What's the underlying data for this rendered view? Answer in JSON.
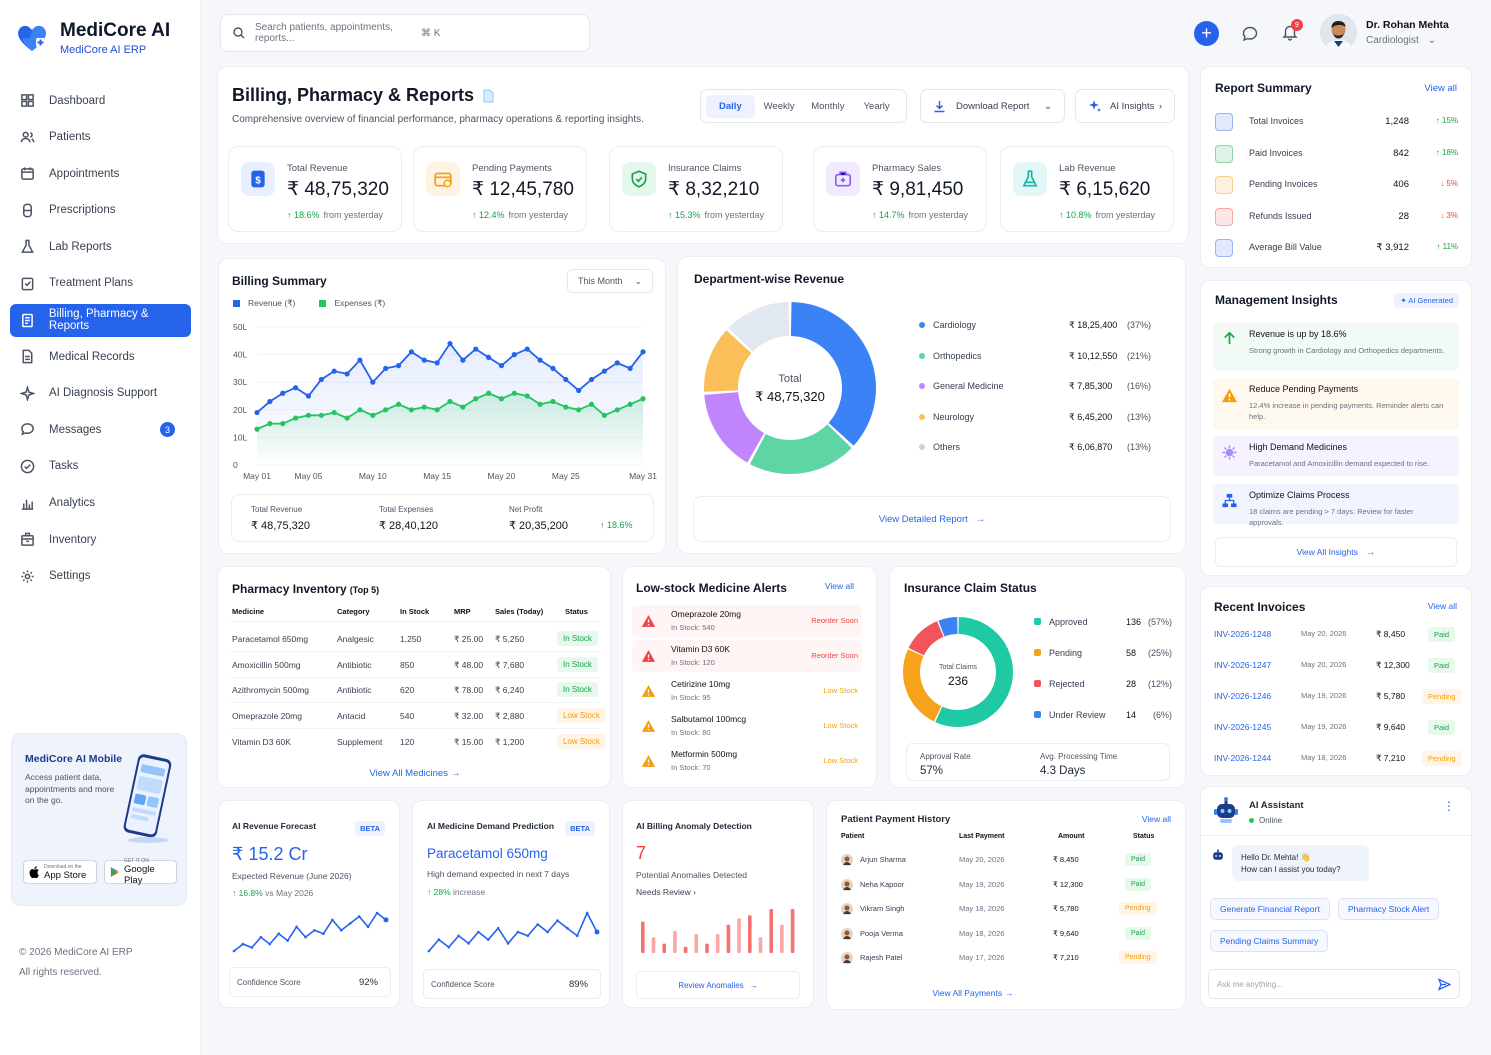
{
  "app": {
    "name": "MediCore AI",
    "sub": "MediCore AI ERP"
  },
  "nav": [
    {
      "label": "Dashboard",
      "icon": "grid-icon"
    },
    {
      "label": "Patients",
      "icon": "users-icon"
    },
    {
      "label": "Appointments",
      "icon": "calendar-icon"
    },
    {
      "label": "Prescriptions",
      "icon": "pill-icon"
    },
    {
      "label": "Lab Reports",
      "icon": "flask-icon"
    },
    {
      "label": "Treatment Plans",
      "icon": "clipboard-icon"
    },
    {
      "label": "Billing, Pharmacy & Reports",
      "icon": "receipt-icon",
      "active": true
    },
    {
      "label": "Medical Records",
      "icon": "file-icon"
    },
    {
      "label": "AI Diagnosis Support",
      "icon": "sparkle-icon"
    },
    {
      "label": "Messages",
      "icon": "chat-icon",
      "badge": "3"
    },
    {
      "label": "Tasks",
      "icon": "check-circle-icon"
    },
    {
      "label": "Analytics",
      "icon": "bar-chart-icon"
    },
    {
      "label": "Inventory",
      "icon": "box-icon"
    },
    {
      "label": "Settings",
      "icon": "gear-icon"
    }
  ],
  "mobile": {
    "title": "MediCore AI Mobile",
    "desc": "Access patient data, appointments and more on the go.",
    "appstore_small": "Download on the",
    "appstore": "App Store",
    "play_small": "GET IT ON",
    "play": "Google Play"
  },
  "footer": {
    "copy": "© 2026 MediCore AI ERP",
    "rights": "All rights reserved."
  },
  "search": {
    "placeholder": "Search patients, appointments, reports...",
    "shortcut": "⌘ K"
  },
  "notif_count": "9",
  "user": {
    "name": "Dr. Rohan Mehta",
    "role": "Cardiologist"
  },
  "page": {
    "title": "Billing, Pharmacy & Reports",
    "subtitle": "Comprehensive overview of financial performance, pharmacy operations & reporting insights."
  },
  "period_tabs": [
    "Daily",
    "Weekly",
    "Monthly",
    "Yearly"
  ],
  "download": "Download Report",
  "ai_insights": "AI Insights",
  "kpis": [
    {
      "label": "Total Revenue",
      "value": "₹ 48,75,320",
      "change": "↑ 18.6%",
      "note": "from yesterday",
      "bg": "#e8efff",
      "fg": "#2563eb"
    },
    {
      "label": "Pending Payments",
      "value": "₹ 12,45,780",
      "change": "↑ 12.4%",
      "note": "from yesterday",
      "bg": "#fff3e3",
      "fg": "#f59e0b"
    },
    {
      "label": "Insurance Claims",
      "value": "₹ 8,32,210",
      "change": "↑ 15.3%",
      "note": "from yesterday",
      "bg": "#e6f7ee",
      "fg": "#16a34a"
    },
    {
      "label": "Pharmacy Sales",
      "value": "₹ 9,81,450",
      "change": "↑ 14.7%",
      "note": "from yesterday",
      "bg": "#f2eaff",
      "fg": "#8b5cf6"
    },
    {
      "label": "Lab Revenue",
      "value": "₹ 6,15,620",
      "change": "↑ 10.8%",
      "note": "from yesterday",
      "bg": "#e3f7f6",
      "fg": "#14b8a6"
    }
  ],
  "report_summary": {
    "title": "Report Summary",
    "view_all": "View all",
    "rows": [
      {
        "label": "Total Invoices",
        "value": "1,248",
        "change": "↑ 15%",
        "up": true,
        "color": "#2563eb"
      },
      {
        "label": "Paid Invoices",
        "value": "842",
        "change": "↑ 18%",
        "up": true,
        "color": "#16a34a"
      },
      {
        "label": "Pending Invoices",
        "value": "406",
        "change": "↓ 5%",
        "up": false,
        "color": "#f59e0b"
      },
      {
        "label": "Refunds Issued",
        "value": "28",
        "change": "↓ 3%",
        "up": false,
        "color": "#ef4444"
      },
      {
        "label": "Average Bill Value",
        "value": "₹ 3,912",
        "change": "↑ 11%",
        "up": true,
        "color": "#2563eb"
      }
    ]
  },
  "billing": {
    "title": "Billing Summary",
    "period": "This Month",
    "legend_revenue": "Revenue (₹)",
    "legend_expenses": "Expenses (₹)",
    "totals": [
      {
        "label": "Total Revenue",
        "value": "₹ 48,75,320"
      },
      {
        "label": "Total Expenses",
        "value": "₹ 28,40,120"
      },
      {
        "label": "Net Profit",
        "value": "₹ 20,35,200"
      }
    ],
    "profit_change": "↑ 18.6%"
  },
  "chart_data": [
    {
      "type": "area",
      "title": "Billing Summary",
      "y_ticks": [
        "0",
        "10L",
        "20L",
        "30L",
        "40L",
        "50L"
      ],
      "ylim": [
        0,
        50
      ],
      "x_labels": [
        "May 01",
        "May 05",
        "May 10",
        "May 15",
        "May 20",
        "May 25",
        "May 31"
      ],
      "series": [
        {
          "name": "Revenue (₹)",
          "color": "#2563eb",
          "values": [
            19,
            23,
            26,
            28,
            25,
            31,
            34,
            33,
            38,
            30,
            35,
            36,
            41,
            38,
            37,
            44,
            38,
            42,
            39,
            36,
            40,
            42,
            38,
            35,
            31,
            27,
            31,
            34,
            37,
            35,
            41
          ]
        },
        {
          "name": "Expenses (₹)",
          "color": "#22c55e",
          "values": [
            13,
            15,
            15,
            17,
            18,
            18,
            19,
            17,
            20,
            18,
            20,
            22,
            20,
            21,
            20,
            23,
            21,
            24,
            26,
            24,
            26,
            25,
            22,
            23,
            21,
            20,
            22,
            18,
            20,
            22,
            24
          ]
        }
      ]
    },
    {
      "type": "pie",
      "title": "Department-wise Revenue",
      "center_label": "Total",
      "center_value": "₹ 48,75,320",
      "slices": [
        {
          "name": "Cardiology",
          "value": "₹ 18,25,400",
          "pct": "(37%)",
          "share": 37,
          "color": "#3b82f6"
        },
        {
          "name": "Orthopedics",
          "value": "₹ 10,12,550",
          "pct": "(21%)",
          "share": 21,
          "color": "#5fd4a4"
        },
        {
          "name": "General Medicine",
          "value": "₹ 7,85,300",
          "pct": "(16%)",
          "share": 16,
          "color": "#c084fc"
        },
        {
          "name": "Neurology",
          "value": "₹ 6,45,200",
          "pct": "(13%)",
          "share": 13,
          "color": "#fbbf5a"
        },
        {
          "name": "Others",
          "value": "₹ 6,06,870",
          "pct": "(13%)",
          "share": 13,
          "color": "#e2e8f0"
        }
      ]
    },
    {
      "type": "pie",
      "title": "Insurance Claim Status",
      "center_label": "Total Claims",
      "center_value": "236",
      "slices": [
        {
          "name": "Approved",
          "value": "136",
          "pct": "(57%)",
          "share": 57,
          "color": "#1ec9a3"
        },
        {
          "name": "Pending",
          "value": "58",
          "pct": "(25%)",
          "share": 25,
          "color": "#f7a21b"
        },
        {
          "name": "Rejected",
          "value": "28",
          "pct": "(12%)",
          "share": 12,
          "color": "#f2545b"
        },
        {
          "name": "Under Review",
          "value": "14",
          "pct": "(6%)",
          "share": 6,
          "color": "#3b82f6"
        }
      ]
    },
    {
      "type": "line",
      "title": "AI Revenue Forecast",
      "values": [
        3,
        5,
        4,
        7,
        5,
        8,
        6,
        10,
        7,
        9,
        8,
        12,
        9,
        11,
        13,
        10,
        14,
        12
      ]
    },
    {
      "type": "line",
      "title": "AI Medicine Demand Prediction",
      "values": [
        4,
        7,
        5,
        8,
        6,
        9,
        7,
        10,
        6,
        9,
        8,
        11,
        9,
        12,
        10,
        8,
        14,
        9
      ]
    },
    {
      "type": "bar",
      "title": "AI Billing Anomaly Detection",
      "values": [
        10,
        5,
        3,
        7,
        2,
        6,
        3,
        6,
        9,
        11,
        12,
        5,
        14,
        9,
        14
      ],
      "colors": [
        "#f87171",
        "#fca5a5"
      ]
    }
  ],
  "dept": {
    "title": "Department-wise Revenue",
    "view_report": "View Detailed Report"
  },
  "mgmt": {
    "title": "Management Insights",
    "tag": "AI Generated",
    "view_all": "View All Insights",
    "items": [
      {
        "title": "Revenue is up by 18.6%",
        "desc": "Strong growth in Cardiology and Orthopedics departments.",
        "icon": "arrow-up-icon",
        "bg": "#f1faf4",
        "color": "#16a34a"
      },
      {
        "title": "Reduce Pending Payments",
        "desc": "12.4% increase in pending payments. Reminder alerts can help.",
        "icon": "warning-icon",
        "bg": "#fff8ee",
        "color": "#f59e0b"
      },
      {
        "title": "High Demand Medicines",
        "desc": "Paracetamol and Amoxicillin demand expected to rise.",
        "icon": "virus-icon",
        "bg": "#f7f2ff",
        "color": "#8b5cf6"
      },
      {
        "title": "Optimize Claims Process",
        "desc": "18 claims are pending > 7 days. Review for faster approvals.",
        "icon": "flow-icon",
        "bg": "#f1f5ff",
        "color": "#2563eb"
      }
    ]
  },
  "inventory": {
    "title": "Pharmacy Inventory",
    "title_suffix": "(Top 5)",
    "headers": [
      "Medicine",
      "Category",
      "In Stock",
      "MRP",
      "Sales (Today)",
      "Status"
    ],
    "view_all": "View All Medicines",
    "rows": [
      [
        "Paracetamol 650mg",
        "Analgesic",
        "1,250",
        "₹ 25.00",
        "₹ 5,250",
        "In Stock"
      ],
      [
        "Amoxicillin 500mg",
        "Antibiotic",
        "850",
        "₹ 48.00",
        "₹ 7,680",
        "In Stock"
      ],
      [
        "Azithromycin 500mg",
        "Antibiotic",
        "620",
        "₹ 78.00",
        "₹ 6,240",
        "In Stock"
      ],
      [
        "Omeprazole 20mg",
        "Antacid",
        "540",
        "₹ 32.00",
        "₹ 2,880",
        "Low Stock"
      ],
      [
        "Vitamin D3 60K",
        "Supplement",
        "120",
        "₹ 15.00",
        "₹ 1,200",
        "Low Stock"
      ]
    ]
  },
  "lowstock": {
    "title": "Low-stock Medicine Alerts",
    "view_all": "View all",
    "items": [
      {
        "name": "Omeprazole 20mg",
        "stock": "In Stock: 540",
        "status": "Reorder Soon",
        "color": "#ef4444"
      },
      {
        "name": "Vitamin D3 60K",
        "stock": "In Stock: 120",
        "status": "Reorder Soon",
        "color": "#ef4444"
      },
      {
        "name": "Cetirizine 10mg",
        "stock": "In Stock: 95",
        "status": "Low Stock",
        "color": "#f59e0b"
      },
      {
        "name": "Salbutamol 100mcg",
        "stock": "In Stock: 80",
        "status": "Low Stock",
        "color": "#f59e0b"
      },
      {
        "name": "Metformin 500mg",
        "stock": "In Stock: 70",
        "status": "Low Stock",
        "color": "#f59e0b"
      }
    ]
  },
  "claims": {
    "title": "Insurance Claim Status",
    "approval_label": "Approval Rate",
    "approval": "57%",
    "proc_label": "Avg. Processing Time",
    "proc": "4.3 Days"
  },
  "invoices": {
    "title": "Recent Invoices",
    "view_all": "View all",
    "rows": [
      {
        "id": "INV-2026-1248",
        "date": "May 20, 2026",
        "amount": "₹ 8,450",
        "status": "Paid"
      },
      {
        "id": "INV-2026-1247",
        "date": "May 20, 2026",
        "amount": "₹ 12,300",
        "status": "Paid"
      },
      {
        "id": "INV-2026-1246",
        "date": "May 19, 2026",
        "amount": "₹ 5,780",
        "status": "Pending"
      },
      {
        "id": "INV-2026-1245",
        "date": "May 19, 2026",
        "amount": "₹ 9,640",
        "status": "Paid"
      },
      {
        "id": "INV-2026-1244",
        "date": "May 18, 2026",
        "amount": "₹ 7,210",
        "status": "Pending"
      }
    ]
  },
  "forecast": {
    "title": "AI Revenue Forecast",
    "beta": "BETA",
    "value": "₹ 15.2 Cr",
    "desc": "Expected Revenue (June 2026)",
    "change": "↑ 16.8%",
    "change_note": "vs May 2026",
    "conf_label": "Confidence Score",
    "conf": "92%"
  },
  "demand": {
    "title": "AI Medicine Demand Prediction",
    "beta": "BETA",
    "value": "Paracetamol 650mg",
    "desc": "High demand expected in next 7 days",
    "change": "↑ 28%",
    "change_note": "increase",
    "conf_label": "Confidence Score",
    "conf": "89%"
  },
  "anomaly": {
    "title": "AI Billing Anomaly Detection",
    "value": "7",
    "desc": "Potential Anomalies Detected",
    "review": "Needs Review ›",
    "link": "Review Anomalies"
  },
  "payments": {
    "title": "Patient Payment History",
    "view_all": "View all",
    "headers": [
      "Patient",
      "Last Payment",
      "Amount",
      "Status"
    ],
    "view_more": "View All Payments",
    "rows": [
      {
        "name": "Arjun Sharma",
        "date": "May 20, 2026",
        "amount": "₹ 8,450",
        "status": "Paid"
      },
      {
        "name": "Neha Kapoor",
        "date": "May 19, 2026",
        "amount": "₹ 12,300",
        "status": "Paid"
      },
      {
        "name": "Vikram Singh",
        "date": "May 18, 2026",
        "amount": "₹ 5,780",
        "status": "Pending"
      },
      {
        "name": "Pooja Verma",
        "date": "May 18, 2026",
        "amount": "₹ 9,640",
        "status": "Paid"
      },
      {
        "name": "Rajesh Patel",
        "date": "May 17, 2026",
        "amount": "₹ 7,210",
        "status": "Pending"
      }
    ]
  },
  "assistant": {
    "title": "AI Assistant",
    "status": "Online",
    "msg1": "Hello Dr. Mehta! 👋",
    "msg2": "How can I assist you today?",
    "chips": [
      "Generate Financial Report",
      "Pharmacy Stock Alert",
      "Pending Claims Summary"
    ],
    "placeholder": "Ask me anything..."
  }
}
